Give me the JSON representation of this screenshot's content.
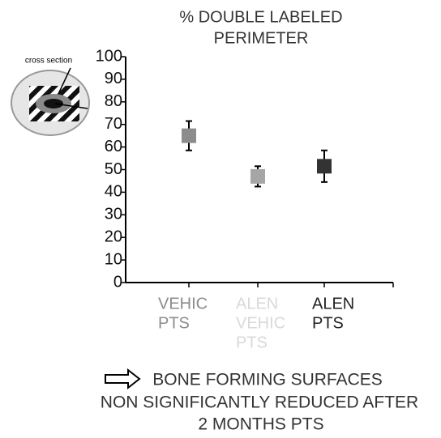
{
  "chart_data": {
    "type": "errorbar",
    "title_lines": [
      "% DOUBLE LABELED",
      "PERIMETER"
    ],
    "annotation": "cross section",
    "categories": [
      [
        "VEHIC",
        "PTS"
      ],
      [
        "ALEN",
        "VEHIC",
        "PTS"
      ],
      [
        "ALEN",
        "PTS"
      ]
    ],
    "category_colors": [
      "#8c8c8c",
      "#d9d9d9",
      "#222222"
    ],
    "values": [
      65,
      47,
      51.5
    ],
    "errors": [
      6.5,
      4.5,
      7
    ],
    "colors": [
      "#8c8c8c",
      "#a6a6a6",
      "#333333"
    ],
    "ylim": [
      0,
      100
    ],
    "yticks": [
      0,
      10,
      20,
      30,
      40,
      50,
      60,
      70,
      80,
      90,
      100
    ],
    "grid": false,
    "footer_lines": [
      "BONE FORMING SURFACES",
      "NON SIGNIFICANTLY REDUCED AFTER",
      "2 MONTHS PTS"
    ]
  }
}
